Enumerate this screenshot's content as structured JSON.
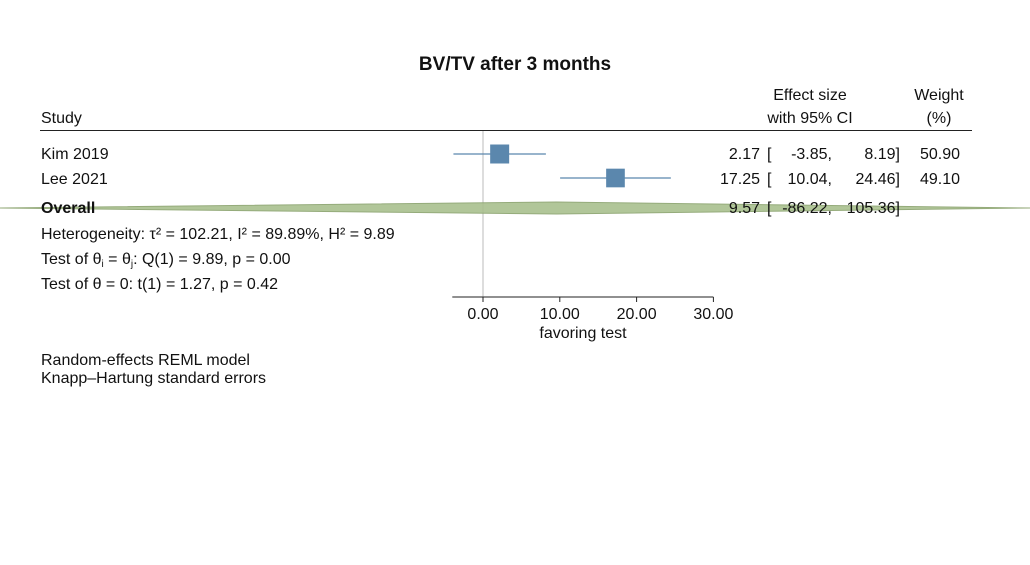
{
  "chart_data": {
    "type": "forest",
    "title": "BV/TV after 3 months",
    "columns": {
      "study": "Study",
      "effect_line1": "Effect size",
      "effect_line2": "with 95% CI",
      "weight_line1": "Weight",
      "weight_line2": "(%)"
    },
    "studies": [
      {
        "name": "Kim 2019",
        "es": 2.17,
        "lo": -3.85,
        "hi": 8.19,
        "weight": 50.9,
        "es_text": "2.17",
        "lo_text": "-3.85,",
        "hi_text": "8.19]",
        "weight_text": "50.90"
      },
      {
        "name": "Lee 2021",
        "es": 17.25,
        "lo": 10.04,
        "hi": 24.46,
        "weight": 49.1,
        "es_text": "17.25",
        "lo_text": "10.04,",
        "hi_text": "24.46]",
        "weight_text": "49.10"
      }
    ],
    "overall": {
      "name": "Overall",
      "es": 9.57,
      "lo": -86.22,
      "hi": 105.36,
      "es_text": "9.57",
      "lo_text": "-86.22,",
      "hi_text": "105.36]"
    },
    "stats": {
      "heterogeneity": "Heterogeneity: τ² = 102.21, I² = 89.89%, H² = 9.89",
      "test_theta_prefix": "Test of θ",
      "test_theta_sub1": "i",
      "test_theta_mid": " = θ",
      "test_theta_sub2": "j",
      "test_theta_suffix": ": Q(1) = 9.89, p = 0.00",
      "test_zero": "Test of θ = 0: t(1) = 1.27, p = 0.42"
    },
    "x_axis": {
      "label": "favoring test",
      "ticks": [
        0,
        10,
        20,
        30
      ],
      "tick_labels": [
        "0.00",
        "10.00",
        "20.00",
        "30.00"
      ],
      "xlim": [
        -4,
        30
      ]
    },
    "notes": [
      "Random-effects REML model",
      "Knapp–Hartung standard errors"
    ],
    "colors": {
      "marker": "#5b87ad",
      "ci_line": "#5b87ad",
      "overall": "#a9c08f",
      "overall_edge": "#8aa36d",
      "null_line": "#bbbbbb",
      "axis": "#222222"
    }
  }
}
